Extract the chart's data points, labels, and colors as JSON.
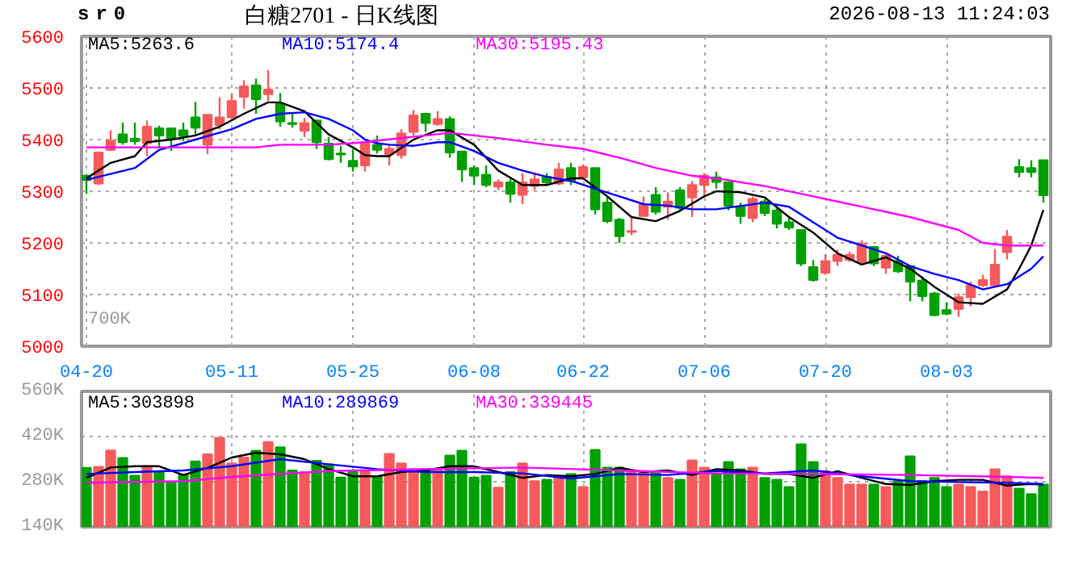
{
  "chart_data": [
    {
      "type": "candlestick",
      "title": "白糖2701 - 日K线图",
      "subtitle": "sr0",
      "annotations": [
        "2026-08-13 11:24:03",
        "700K"
      ],
      "categories": [
        "04-20",
        null,
        null,
        null,
        null,
        null,
        null,
        null,
        null,
        null,
        null,
        null,
        "05-11",
        null,
        null,
        null,
        null,
        null,
        null,
        null,
        null,
        null,
        "05-25",
        null,
        null,
        null,
        null,
        null,
        null,
        null,
        null,
        null,
        "06-08",
        null,
        null,
        null,
        null,
        null,
        null,
        null,
        null,
        "06-22",
        null,
        null,
        null,
        null,
        null,
        null,
        null,
        null,
        null,
        "07-06",
        null,
        null,
        null,
        null,
        null,
        null,
        null,
        null,
        null,
        "07-20",
        null,
        null,
        null,
        null,
        null,
        null,
        null,
        null,
        null,
        "08-03",
        null,
        null,
        null,
        null,
        null,
        null,
        null,
        null
      ],
      "ohlc": [
        [
          5330,
          5332,
          5295,
          5322
        ],
        [
          5315,
          5377,
          5312,
          5375
        ],
        [
          5380,
          5418,
          5378,
          5398
        ],
        [
          5410,
          5433,
          5390,
          5395
        ],
        [
          5402,
          5433,
          5390,
          5397
        ],
        [
          5393,
          5437,
          5368,
          5425
        ],
        [
          5422,
          5427,
          5385,
          5408
        ],
        [
          5422,
          5422,
          5378,
          5402
        ],
        [
          5418,
          5433,
          5397,
          5407
        ],
        [
          5443,
          5473,
          5410,
          5423
        ],
        [
          5390,
          5448,
          5372,
          5448
        ],
        [
          5428,
          5482,
          5420,
          5443
        ],
        [
          5443,
          5488,
          5440,
          5475
        ],
        [
          5483,
          5515,
          5460,
          5503
        ],
        [
          5505,
          5518,
          5450,
          5478
        ],
        [
          5488,
          5535,
          5475,
          5497
        ],
        [
          5470,
          5490,
          5425,
          5435
        ],
        [
          5432,
          5450,
          5423,
          5430
        ],
        [
          5417,
          5442,
          5405,
          5432
        ],
        [
          5437,
          5437,
          5382,
          5395
        ],
        [
          5392,
          5405,
          5360,
          5362
        ],
        [
          5373,
          5388,
          5355,
          5371
        ],
        [
          5359,
          5382,
          5338,
          5348
        ],
        [
          5350,
          5395,
          5338,
          5395
        ],
        [
          5390,
          5408,
          5373,
          5380
        ],
        [
          5372,
          5388,
          5350,
          5382
        ],
        [
          5370,
          5420,
          5363,
          5412
        ],
        [
          5415,
          5457,
          5408,
          5447
        ],
        [
          5450,
          5452,
          5415,
          5432
        ],
        [
          5430,
          5455,
          5427,
          5440
        ],
        [
          5440,
          5445,
          5365,
          5375
        ],
        [
          5377,
          5377,
          5318,
          5342
        ],
        [
          5345,
          5350,
          5312,
          5330
        ],
        [
          5332,
          5350,
          5308,
          5312
        ],
        [
          5309,
          5323,
          5302,
          5317
        ],
        [
          5317,
          5323,
          5278,
          5295
        ],
        [
          5293,
          5335,
          5275,
          5317
        ],
        [
          5310,
          5335,
          5302,
          5323
        ],
        [
          5328,
          5335,
          5312,
          5317
        ],
        [
          5315,
          5355,
          5312,
          5342
        ],
        [
          5345,
          5355,
          5312,
          5320
        ],
        [
          5327,
          5352,
          5323,
          5347
        ],
        [
          5345,
          5345,
          5255,
          5265
        ],
        [
          5278,
          5292,
          5238,
          5242
        ],
        [
          5245,
          5248,
          5200,
          5213
        ],
        [
          5221,
          5252,
          5215,
          5223
        ],
        [
          5252,
          5290,
          5252,
          5275
        ],
        [
          5293,
          5308,
          5255,
          5260
        ],
        [
          5270,
          5298,
          5245,
          5280
        ],
        [
          5302,
          5308,
          5263,
          5268
        ],
        [
          5288,
          5320,
          5250,
          5312
        ],
        [
          5312,
          5335,
          5290,
          5330
        ],
        [
          5327,
          5338,
          5305,
          5318
        ],
        [
          5317,
          5317,
          5263,
          5272
        ],
        [
          5270,
          5278,
          5237,
          5252
        ],
        [
          5248,
          5290,
          5240,
          5285
        ],
        [
          5280,
          5285,
          5252,
          5258
        ],
        [
          5263,
          5267,
          5228,
          5237
        ],
        [
          5240,
          5252,
          5225,
          5230
        ],
        [
          5225,
          5225,
          5155,
          5160
        ],
        [
          5153,
          5167,
          5125,
          5128
        ],
        [
          5142,
          5178,
          5138,
          5165
        ],
        [
          5165,
          5187,
          5155,
          5177
        ],
        [
          5167,
          5183,
          5163,
          5177
        ],
        [
          5162,
          5205,
          5160,
          5198
        ],
        [
          5192,
          5192,
          5155,
          5160
        ],
        [
          5152,
          5182,
          5140,
          5175
        ],
        [
          5165,
          5175,
          5142,
          5145
        ],
        [
          5155,
          5155,
          5087,
          5125
        ],
        [
          5127,
          5135,
          5087,
          5097
        ],
        [
          5102,
          5105,
          5058,
          5060
        ],
        [
          5070,
          5085,
          5060,
          5063
        ],
        [
          5072,
          5102,
          5057,
          5095
        ],
        [
          5095,
          5125,
          5077,
          5117
        ],
        [
          5118,
          5138,
          5115,
          5128
        ],
        [
          5118,
          5188,
          5115,
          5158
        ],
        [
          5182,
          5225,
          5168,
          5212
        ],
        [
          5347,
          5362,
          5327,
          5337
        ],
        [
          5345,
          5360,
          5327,
          5337
        ],
        [
          5360,
          5360,
          5278,
          5292
        ]
      ],
      "colors": [
        "#00a000",
        "#f65a5a",
        "#f65a5a",
        "#00a000",
        "#00a000",
        "#f65a5a",
        "#00a000",
        "#00a000",
        "#00a000",
        "#00a000",
        "#f65a5a",
        "#f65a5a",
        "#f65a5a",
        "#f65a5a",
        "#00a000",
        "#f65a5a",
        "#00a000",
        "#00a000",
        "#f65a5a",
        "#00a000",
        "#00a000",
        "#00a000",
        "#00a000",
        "#f65a5a",
        "#00a000",
        "#f65a5a",
        "#f65a5a",
        "#f65a5a",
        "#00a000",
        "#f65a5a",
        "#00a000",
        "#00a000",
        "#00a000",
        "#00a000",
        "#f65a5a",
        "#00a000",
        "#f65a5a",
        "#f65a5a",
        "#00a000",
        "#f65a5a",
        "#00a000",
        "#f65a5a",
        "#00a000",
        "#00a000",
        "#00a000",
        "#f65a5a",
        "#f65a5a",
        "#00a000",
        "#f65a5a",
        "#00a000",
        "#f65a5a",
        "#f65a5a",
        "#00a000",
        "#00a000",
        "#00a000",
        "#f65a5a",
        "#00a000",
        "#00a000",
        "#00a000",
        "#00a000",
        "#00a000",
        "#f65a5a",
        "#f65a5a",
        "#f65a5a",
        "#f65a5a",
        "#00a000",
        "#f65a5a",
        "#00a000",
        "#00a000",
        "#00a000",
        "#00a000",
        "#00a000",
        "#f65a5a",
        "#f65a5a",
        "#f65a5a",
        "#f65a5a",
        "#f65a5a",
        "#00a000",
        "#00a000",
        "#00a000"
      ],
      "series": [
        {
          "type": "line",
          "name": "MA5:5263.6",
          "color": "#000000",
          "values": [
            5325,
            null,
            5355,
            null,
            5368,
            5395,
            null,
            5400,
            null,
            5408,
            null,
            5425,
            null,
            5450,
            null,
            5472,
            5472,
            null,
            5455,
            null,
            5410,
            null,
            5385,
            5370,
            5368,
            5368,
            null,
            5400,
            null,
            5418,
            5418,
            null,
            5390,
            null,
            5340,
            null,
            5312,
            null,
            5312,
            null,
            5325,
            5325,
            null,
            5290,
            null,
            5250,
            null,
            5242,
            null,
            5262,
            null,
            5290,
            5300,
            null,
            5298,
            null,
            5288,
            null,
            5250,
            null,
            5220,
            null,
            5180,
            null,
            5158,
            null,
            5172,
            null,
            5150,
            null,
            5115,
            null,
            5085,
            null,
            5082,
            null,
            5110,
            5150,
            5195,
            5264
          ]
        },
        {
          "type": "line",
          "name": "MA10:5174.4",
          "color": "#0000ff",
          "values": [
            5322,
            null,
            null,
            null,
            5345,
            null,
            5380,
            null,
            null,
            5400,
            null,
            null,
            5420,
            null,
            5440,
            null,
            5450,
            null,
            5453,
            null,
            5440,
            null,
            5418,
            5400,
            5393,
            5390,
            null,
            5388,
            null,
            5395,
            5395,
            null,
            5378,
            null,
            5355,
            null,
            5340,
            null,
            5328,
            null,
            5320,
            null,
            5305,
            null,
            5290,
            null,
            5275,
            null,
            5272,
            null,
            5265,
            null,
            5265,
            null,
            null,
            null,
            5278,
            null,
            5270,
            null,
            5240,
            null,
            5210,
            null,
            5195,
            null,
            5180,
            null,
            5155,
            null,
            5140,
            null,
            5128,
            null,
            5110,
            null,
            5120,
            null,
            5150,
            5174
          ]
        },
        {
          "type": "line",
          "name": "MA30:5195.43",
          "color": "#ff00ff",
          "values": [
            5385,
            null,
            null,
            null,
            null,
            null,
            null,
            null,
            null,
            null,
            null,
            null,
            null,
            null,
            5385,
            null,
            5390,
            null,
            null,
            null,
            5390,
            null,
            null,
            5395,
            5398,
            null,
            null,
            null,
            5408,
            null,
            5413,
            null,
            null,
            null,
            5403,
            null,
            null,
            null,
            5390,
            null,
            null,
            5382,
            null,
            null,
            5365,
            null,
            null,
            5345,
            null,
            null,
            5330,
            null,
            5325,
            null,
            null,
            null,
            5310,
            null,
            null,
            null,
            5290,
            null,
            null,
            null,
            5270,
            null,
            null,
            null,
            5250,
            null,
            null,
            null,
            5225,
            null,
            5200,
            null,
            5195,
            null,
            null,
            5195
          ]
        }
      ],
      "ylim": [
        5000,
        5600
      ],
      "yticks": [
        5000,
        5100,
        5200,
        5300,
        5400,
        5500,
        5600
      ],
      "grid": true
    },
    {
      "type": "bar",
      "categories": [
        null,
        null,
        null,
        null,
        null,
        null,
        null,
        null,
        null,
        null,
        null,
        null,
        null,
        null,
        null,
        null,
        null,
        null,
        null,
        null,
        null,
        null,
        null,
        null,
        null,
        null,
        null,
        null,
        null,
        null,
        null,
        null,
        null,
        null,
        null,
        null,
        null,
        null,
        null,
        null,
        null,
        null,
        null,
        null,
        null,
        null,
        null,
        null,
        null,
        null,
        null,
        null,
        null,
        null,
        null,
        null,
        null,
        null,
        null,
        null,
        null,
        null,
        null,
        null,
        null,
        null,
        null,
        null,
        null,
        null,
        null,
        null,
        null,
        null,
        null,
        null,
        null,
        null,
        null,
        null
      ],
      "values": [
        323000,
        326000,
        377000,
        354000,
        299000,
        328000,
        310000,
        277000,
        301000,
        343000,
        365000,
        416000,
        337000,
        355000,
        376000,
        403000,
        387000,
        315000,
        310000,
        345000,
        334000,
        293000,
        310000,
        310000,
        297000,
        366000,
        337000,
        319000,
        319000,
        319000,
        361000,
        376000,
        293000,
        299000,
        262000,
        310000,
        337000,
        282000,
        286000,
        292000,
        304000,
        264000,
        379000,
        324000,
        324000,
        313000,
        313000,
        306000,
        292000,
        286000,
        346000,
        324000,
        304000,
        341000,
        319000,
        324000,
        292000,
        286000,
        264000,
        396000,
        341000,
        313000,
        292000,
        271000,
        271000,
        271000,
        264000,
        281000,
        359000,
        282000,
        292000,
        264000,
        271000,
        264000,
        250000,
        319000,
        297000,
        259000,
        242000,
        271000
      ],
      "colors": [
        "#00a000",
        "#f65a5a",
        "#f65a5a",
        "#00a000",
        "#00a000",
        "#f65a5a",
        "#00a000",
        "#00a000",
        "#00a000",
        "#00a000",
        "#f65a5a",
        "#f65a5a",
        "#f65a5a",
        "#f65a5a",
        "#00a000",
        "#f65a5a",
        "#00a000",
        "#00a000",
        "#f65a5a",
        "#00a000",
        "#00a000",
        "#00a000",
        "#00a000",
        "#f65a5a",
        "#00a000",
        "#f65a5a",
        "#f65a5a",
        "#f65a5a",
        "#00a000",
        "#f65a5a",
        "#00a000",
        "#00a000",
        "#00a000",
        "#00a000",
        "#f65a5a",
        "#00a000",
        "#f65a5a",
        "#f65a5a",
        "#00a000",
        "#f65a5a",
        "#00a000",
        "#f65a5a",
        "#00a000",
        "#00a000",
        "#00a000",
        "#f65a5a",
        "#f65a5a",
        "#00a000",
        "#f65a5a",
        "#00a000",
        "#f65a5a",
        "#f65a5a",
        "#00a000",
        "#00a000",
        "#00a000",
        "#f65a5a",
        "#00a000",
        "#00a000",
        "#00a000",
        "#00a000",
        "#00a000",
        "#f65a5a",
        "#f65a5a",
        "#f65a5a",
        "#f65a5a",
        "#00a000",
        "#f65a5a",
        "#00a000",
        "#00a000",
        "#00a000",
        "#00a000",
        "#00a000",
        "#f65a5a",
        "#f65a5a",
        "#f65a5a",
        "#f65a5a",
        "#f65a5a",
        "#00a000",
        "#00a000",
        "#00a000"
      ],
      "series": [
        {
          "type": "line",
          "name": "MA5:303898",
          "color": "#000000",
          "values": [
            292000,
            null,
            324000,
            null,
            328000,
            null,
            328000,
            null,
            301000,
            null,
            323000,
            null,
            355000,
            null,
            370000,
            null,
            365000,
            null,
            350000,
            null,
            319000,
            null,
            297000,
            null,
            297000,
            null,
            310000,
            null,
            315000,
            null,
            328000,
            null,
            328000,
            null,
            310000,
            null,
            292000,
            null,
            301000,
            null,
            297000,
            null,
            304000,
            null,
            323000,
            null,
            310000,
            null,
            315000,
            null,
            301000,
            null,
            319000,
            null,
            315000,
            null,
            304000,
            null,
            304000,
            null,
            292000,
            null,
            313000,
            null,
            292000,
            null,
            273000,
            null,
            270000,
            null,
            282000,
            null,
            286000,
            null,
            286000,
            null,
            268000,
            null,
            273000,
            271000
          ]
        },
        {
          "type": "line",
          "name": "MA10:289869",
          "color": "#0000ff",
          "values": [
            304000,
            null,
            null,
            null,
            310000,
            null,
            null,
            null,
            315000,
            null,
            null,
            null,
            328000,
            null,
            null,
            null,
            350000,
            null,
            null,
            null,
            334000,
            null,
            null,
            null,
            319000,
            null,
            null,
            null,
            310000,
            null,
            null,
            null,
            310000,
            null,
            null,
            null,
            306000,
            null,
            null,
            null,
            290000,
            null,
            null,
            null,
            304000,
            null,
            null,
            null,
            301000,
            null,
            null,
            null,
            313000,
            null,
            null,
            null,
            306000,
            null,
            null,
            null,
            315000,
            null,
            null,
            null,
            297000,
            null,
            null,
            null,
            282000,
            null,
            null,
            null,
            279000,
            null,
            null,
            null,
            277000,
            null,
            null,
            273000
          ]
        },
        {
          "type": "line",
          "name": "MA30:339445",
          "color": "#ff00ff",
          "values": [
            277000,
            null,
            null,
            null,
            null,
            null,
            null,
            null,
            282000,
            null,
            null,
            null,
            295000,
            null,
            null,
            null,
            null,
            null,
            null,
            null,
            313000,
            null,
            null,
            null,
            null,
            null,
            null,
            null,
            319000,
            null,
            null,
            null,
            null,
            null,
            null,
            null,
            324000,
            null,
            null,
            null,
            null,
            null,
            null,
            null,
            315000,
            null,
            null,
            null,
            null,
            null,
            null,
            null,
            306000,
            null,
            null,
            null,
            null,
            null,
            null,
            null,
            304000,
            null,
            null,
            null,
            null,
            null,
            null,
            null,
            301000,
            null,
            null,
            null,
            null,
            null,
            null,
            null,
            295000,
            null,
            null,
            292000
          ]
        }
      ],
      "ylim": [
        140000,
        560000
      ],
      "yticks": [
        {
          "value": 140000,
          "label": "140K"
        },
        {
          "value": 280000,
          "label": "280K"
        },
        {
          "value": 420000,
          "label": "420K"
        },
        {
          "value": 560000,
          "label": "560K"
        }
      ],
      "grid": true,
      "tick_labels": "y"
    }
  ]
}
